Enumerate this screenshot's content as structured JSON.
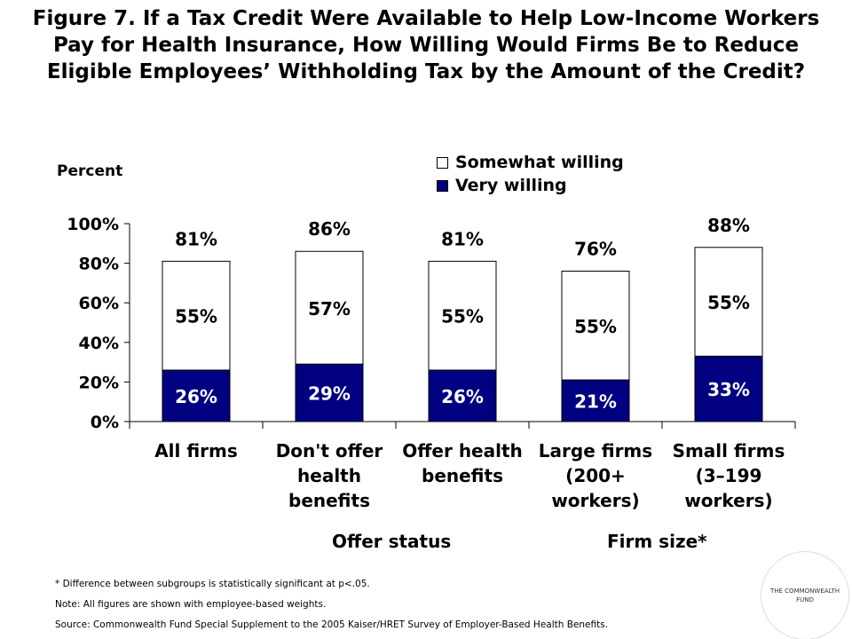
{
  "title": "Figure 7. If a Tax Credit Were Available to Help Low-Income Workers Pay for Health Insurance, How Willing Would Firms Be to Reduce Eligible Employees’ Withholding Tax by the Amount of the Credit?",
  "y_unit_label": "Percent",
  "group_labels": [
    "Offer status",
    "Firm size*"
  ],
  "notes": [
    "* Difference between subgroups is statistically significant at p<.05.",
    "Note: All figures are shown with employee-based weights.",
    "Source: Commonwealth Fund Special Supplement to the 2005 Kaiser/HRET Survey of Employer-Based Health Benefits."
  ],
  "logo_text": "THE COMMONWEALTH FUND",
  "colors": {
    "very_willing": "#000080",
    "somewhat_willing": "#ffffff",
    "border": "#000000"
  },
  "chart_data": {
    "type": "bar",
    "stacked": true,
    "categories": [
      [
        "All firms"
      ],
      [
        "Don't offer",
        "health",
        "benefits"
      ],
      [
        "Offer health",
        "benefits"
      ],
      [
        "Large firms",
        "(200+",
        "workers)"
      ],
      [
        "Small firms",
        "(3–199",
        "workers)"
      ]
    ],
    "series": [
      {
        "name": "Very willing",
        "values": [
          26,
          29,
          26,
          21,
          33
        ],
        "labels": [
          "26%",
          "29%",
          "26%",
          "21%",
          "33%"
        ]
      },
      {
        "name": "Somewhat willing",
        "values": [
          55,
          57,
          55,
          55,
          55
        ],
        "labels": [
          "55%",
          "57%",
          "55%",
          "55%",
          "55%"
        ]
      }
    ],
    "totals": [
      81,
      86,
      81,
      76,
      88
    ],
    "total_labels": [
      "81%",
      "86%",
      "81%",
      "76%",
      "88%"
    ],
    "ylim": [
      0,
      100
    ],
    "yticks": [
      "0%",
      "20%",
      "40%",
      "60%",
      "80%",
      "100%"
    ],
    "legend": {
      "position": "top-right",
      "entries": [
        "Somewhat willing",
        "Very willing"
      ]
    },
    "grid": false
  }
}
